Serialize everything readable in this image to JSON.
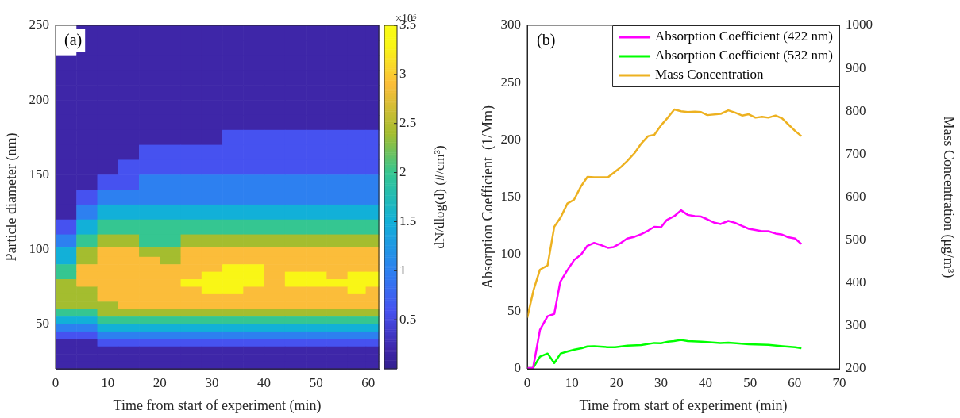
{
  "chart_data": [
    {
      "type": "heatmap",
      "xlabel": "Time from start of experiment (min)",
      "ylabel": "Particle diameter (nm)",
      "clabel": "dN/dlog(d) (#/cm³)",
      "x": [
        2,
        6,
        10,
        14,
        18,
        22,
        26,
        30,
        34,
        38,
        42,
        46,
        50,
        54,
        58,
        61
      ],
      "y": [
        245,
        235,
        225,
        215,
        205,
        195,
        185,
        175,
        165,
        155,
        145,
        135,
        125,
        115,
        105,
        97.5,
        92.5,
        87.5,
        82.5,
        77.5,
        72.5,
        67.5,
        62.5,
        57.5,
        52.5,
        47.5,
        42.5,
        37.5,
        32.5,
        27.5,
        22.5
      ],
      "cells": [
        [
          null,
          0.2,
          0.2,
          0.2,
          0.2,
          0.2,
          0.2,
          0.2,
          0.2,
          0.2,
          0.2,
          0.2,
          0.2,
          0.2,
          0.2,
          0.2
        ],
        [
          null,
          0.2,
          0.2,
          0.2,
          0.2,
          0.2,
          0.2,
          0.2,
          0.2,
          0.2,
          0.2,
          0.2,
          0.2,
          0.2,
          0.2,
          0.2
        ],
        [
          0.2,
          0.2,
          0.2,
          0.2,
          0.2,
          0.2,
          0.2,
          0.2,
          0.2,
          0.2,
          0.2,
          0.2,
          0.2,
          0.2,
          0.2,
          0.2
        ],
        [
          0.2,
          0.2,
          0.2,
          0.2,
          0.2,
          0.2,
          0.2,
          0.2,
          0.2,
          0.2,
          0.2,
          0.2,
          0.2,
          0.2,
          0.2,
          0.2
        ],
        [
          0.2,
          0.2,
          0.2,
          0.2,
          0.2,
          0.2,
          0.2,
          0.2,
          0.2,
          0.2,
          0.2,
          0.2,
          0.2,
          0.2,
          0.2,
          0.2
        ],
        [
          0.2,
          0.2,
          0.2,
          0.2,
          0.2,
          0.2,
          0.2,
          0.2,
          0.2,
          0.2,
          0.2,
          0.2,
          0.2,
          0.2,
          0.2,
          0.2
        ],
        [
          0.2,
          0.2,
          0.2,
          0.2,
          0.2,
          0.2,
          0.2,
          0.2,
          0.2,
          0.2,
          0.2,
          0.2,
          0.2,
          0.2,
          0.2,
          0.2
        ],
        [
          0.2,
          0.2,
          0.2,
          0.2,
          0.2,
          0.2,
          0.2,
          0.2,
          0.6,
          0.6,
          0.6,
          0.6,
          0.6,
          0.6,
          0.6,
          0.6
        ],
        [
          0.2,
          0.2,
          0.2,
          0.2,
          0.6,
          0.6,
          0.6,
          0.6,
          0.6,
          0.6,
          0.6,
          0.6,
          0.6,
          0.6,
          0.6,
          0.6
        ],
        [
          0.2,
          0.2,
          0.2,
          0.6,
          0.6,
          0.6,
          0.6,
          0.6,
          0.6,
          0.6,
          0.6,
          0.6,
          0.6,
          0.6,
          0.6,
          0.6
        ],
        [
          0.2,
          0.2,
          0.6,
          0.6,
          1,
          1,
          1,
          1,
          1,
          1,
          1,
          1,
          1,
          1,
          1,
          1
        ],
        [
          0.2,
          0.6,
          1,
          1,
          1,
          1,
          1,
          1,
          1,
          1,
          1,
          1,
          1,
          1,
          1,
          1
        ],
        [
          0.2,
          1,
          1.5,
          1.5,
          1.5,
          1.5,
          1.5,
          1.5,
          1.5,
          1.5,
          1.5,
          1.5,
          1.5,
          1.5,
          1.5,
          1.5
        ],
        [
          0.6,
          1.5,
          2,
          2,
          2,
          2,
          2,
          2,
          2,
          2,
          2,
          2,
          2,
          2,
          2,
          2
        ],
        [
          1,
          2,
          2.4,
          2.4,
          2,
          2,
          2.4,
          2.4,
          2.4,
          2.4,
          2.4,
          2.4,
          2.4,
          2.4,
          2.4,
          2.4
        ],
        [
          1.5,
          2.4,
          2.9,
          2.9,
          2.4,
          2.4,
          2.9,
          2.9,
          2.9,
          2.9,
          2.9,
          2.9,
          2.9,
          2.9,
          2.9,
          2.9
        ],
        [
          1.5,
          2.4,
          2.9,
          2.9,
          2.9,
          2.4,
          2.9,
          2.9,
          2.9,
          2.9,
          2.9,
          2.9,
          2.9,
          2.9,
          2.9,
          2.9
        ],
        [
          2,
          2.9,
          2.9,
          2.9,
          2.9,
          2.9,
          2.9,
          2.9,
          3.3,
          3.3,
          2.9,
          2.9,
          2.9,
          2.9,
          2.9,
          2.9
        ],
        [
          2,
          2.9,
          2.9,
          2.9,
          2.9,
          2.9,
          2.9,
          3.3,
          3.3,
          3.3,
          2.9,
          3.3,
          3.3,
          2.9,
          3.3,
          3.3
        ],
        [
          2.4,
          2.9,
          2.9,
          2.9,
          2.9,
          2.9,
          3.3,
          3.3,
          3.3,
          3.3,
          2.9,
          3.3,
          3.3,
          3.3,
          3.3,
          3.3
        ],
        [
          2.4,
          2.4,
          2.9,
          2.9,
          2.9,
          2.9,
          2.9,
          3.3,
          3.3,
          2.9,
          2.9,
          2.9,
          2.9,
          2.9,
          3.3,
          2.9
        ],
        [
          2.4,
          2.4,
          2.9,
          2.9,
          2.9,
          2.9,
          2.9,
          2.9,
          2.9,
          2.9,
          2.9,
          2.9,
          2.9,
          2.9,
          2.9,
          2.9
        ],
        [
          2.4,
          2.4,
          2.4,
          2.9,
          2.9,
          2.9,
          2.9,
          2.9,
          2.9,
          2.9,
          2.9,
          2.9,
          2.9,
          2.9,
          2.9,
          2.9
        ],
        [
          2,
          2,
          2.4,
          2.4,
          2.4,
          2.4,
          2.4,
          2.4,
          2.4,
          2.4,
          2.4,
          2.4,
          2.4,
          2.4,
          2.4,
          2.4
        ],
        [
          1.5,
          1.5,
          2,
          2,
          2,
          2,
          2,
          2,
          2,
          2,
          2,
          2,
          2,
          2,
          2,
          2
        ],
        [
          1,
          1,
          1.5,
          1.5,
          1.5,
          1.5,
          1.5,
          1.5,
          1.5,
          1.5,
          1.5,
          1.5,
          1.5,
          1.5,
          1.5,
          1.5
        ],
        [
          0.6,
          0.6,
          1,
          1,
          1,
          1,
          1,
          1,
          1,
          1,
          1,
          1,
          1,
          1,
          1,
          1
        ],
        [
          0.2,
          0.2,
          0.6,
          0.6,
          0.6,
          0.6,
          0.6,
          0.6,
          0.6,
          0.6,
          0.6,
          0.6,
          0.6,
          0.6,
          0.6,
          0.6
        ],
        [
          0.2,
          0.2,
          0.2,
          0.2,
          0.2,
          0.2,
          0.2,
          0.2,
          0.2,
          0.2,
          0.2,
          0.2,
          0.2,
          0.2,
          0.2,
          0.2
        ],
        [
          0.2,
          0.2,
          0.2,
          0.2,
          0.2,
          0.2,
          0.2,
          0.2,
          0.2,
          0.2,
          0.2,
          0.2,
          0.2,
          0.2,
          0.2,
          0.2
        ],
        [
          0.2,
          0.2,
          0.2,
          0.2,
          0.2,
          0.2,
          0.2,
          0.2,
          0.2,
          0.2,
          0.2,
          0.2,
          0.2,
          0.2,
          0.2,
          0.2
        ]
      ],
      "xlim": [
        0,
        62
      ],
      "xticks": [
        0,
        10,
        20,
        30,
        40,
        50,
        60
      ],
      "ylim": [
        20,
        250
      ],
      "yticks": [
        50,
        100,
        150,
        200,
        250
      ],
      "clim": [
        0,
        3.5
      ],
      "cticks": [
        0.5,
        1,
        1.5,
        2,
        2.5,
        3,
        3.5
      ],
      "annotations": [
        "(a)",
        "×10⁶"
      ]
    },
    {
      "type": "line",
      "xlabel": "Time from start of experiment (min)",
      "ylabel": "Absorption Coefficient  (1/Mm)",
      "y2label": "Mass Concentration (μg/m³)",
      "series": [
        {
          "name": "Absorption Coefficient (422 nm)",
          "color": "#ff00ff",
          "x": [
            0,
            1.3,
            2.85,
            4.56,
            6.06,
            7.4,
            8.8,
            10.5,
            12.1,
            13.5,
            15,
            16.6,
            18.1,
            19.4,
            21,
            22.4,
            24.1,
            25.6,
            27.1,
            28.5,
            30,
            31.3,
            33,
            34.5,
            36,
            37.6,
            39,
            40.4,
            42,
            43.4,
            45.1,
            46.6,
            48.3,
            49.7,
            51.2,
            52.6,
            54.1,
            55.7,
            57.2,
            58.5,
            60.1,
            61.5
          ],
          "values": [
            0.7,
            0.7,
            34,
            46,
            48,
            76,
            85,
            95,
            100,
            107.5,
            110,
            108,
            105.7,
            106.4,
            110,
            113.8,
            115.4,
            117.7,
            120.7,
            124,
            123.7,
            130,
            133.4,
            138.5,
            134.5,
            133.4,
            133,
            130.6,
            127.6,
            126.5,
            129.2,
            127.6,
            124.6,
            122.3,
            121.2,
            120.2,
            120.2,
            118.2,
            117.2,
            115,
            113.8,
            109
          ]
        },
        {
          "name": "Absorption Coefficient (532 nm)",
          "color": "#00ff00",
          "x": [
            0,
            1.3,
            2.85,
            4.56,
            6.06,
            7.5,
            9.1,
            10.6,
            12.2,
            13.5,
            15,
            18.1,
            19.7,
            22.5,
            25.6,
            28.5,
            30,
            31.6,
            32.9,
            34.5,
            36,
            39.1,
            43.3,
            45.1,
            46.9,
            49.7,
            54.1,
            57.3,
            60.1,
            61.5
          ],
          "values": [
            0.7,
            0.7,
            10.6,
            13.4,
            5,
            13.4,
            15.2,
            16.8,
            18,
            19.6,
            19.8,
            18.9,
            18.9,
            20.3,
            20.8,
            22.6,
            22.4,
            23.8,
            24.2,
            25.2,
            24.2,
            23.8,
            22.6,
            22.8,
            22.4,
            21.5,
            21,
            19.8,
            18.9,
            18
          ]
        },
        {
          "name": "Mass Concentration",
          "color": "#edb120",
          "axis": "y2",
          "x": [
            0,
            1.4,
            2.85,
            4.56,
            6.06,
            7.5,
            9,
            10.5,
            12.1,
            13.5,
            15,
            18.1,
            19.7,
            21,
            22.4,
            24.1,
            25.6,
            27.1,
            28.5,
            30,
            31.6,
            33,
            34.5,
            36,
            37.6,
            39,
            40.4,
            43.4,
            45.1,
            46.6,
            48.2,
            49.7,
            51.2,
            52.7,
            54.1,
            55.7,
            57.2,
            58.5,
            60.1,
            61.5
          ],
          "values": [
            319,
            383,
            431,
            441,
            531,
            553,
            585,
            594,
            626,
            647,
            646,
            646,
            659,
            670,
            684,
            703,
            725,
            742,
            745,
            767,
            786,
            804,
            800,
            798,
            799,
            798,
            791,
            794,
            802,
            797,
            790,
            793,
            785,
            787,
            785,
            790,
            783,
            770,
            754,
            742
          ]
        }
      ],
      "xlim": [
        0,
        70
      ],
      "xticks": [
        0,
        10,
        20,
        30,
        40,
        50,
        60,
        70
      ],
      "ylim": [
        0,
        300
      ],
      "yticks": [
        0,
        50,
        100,
        150,
        200,
        250,
        300
      ],
      "y2lim": [
        200,
        1000
      ],
      "y2ticks": [
        200,
        300,
        400,
        500,
        600,
        700,
        800,
        900,
        1000
      ],
      "legend": "top right",
      "marker": "none",
      "annotations": [
        "(b)"
      ]
    }
  ]
}
